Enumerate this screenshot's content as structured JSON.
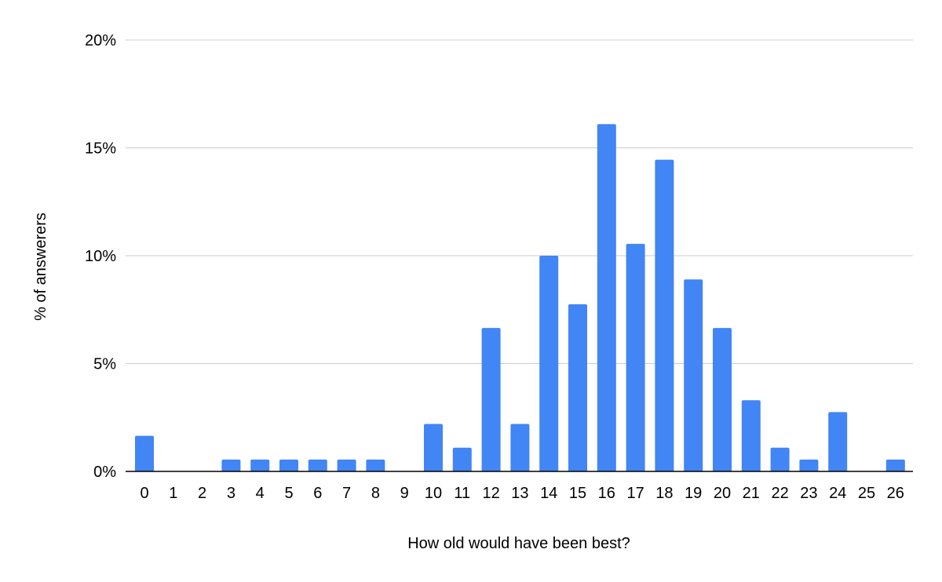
{
  "chart_data": {
    "type": "bar",
    "xlabel": "How old would have been best?",
    "ylabel": "% of answerers",
    "categories": [
      "0",
      "1",
      "2",
      "3",
      "4",
      "5",
      "6",
      "7",
      "8",
      "9",
      "10",
      "11",
      "12",
      "13",
      "14",
      "15",
      "16",
      "17",
      "18",
      "19",
      "20",
      "21",
      "22",
      "23",
      "24",
      "25",
      "26"
    ],
    "values": [
      1.65,
      0,
      0,
      0.55,
      0.55,
      0.55,
      0.55,
      0.55,
      0.55,
      0,
      2.2,
      1.1,
      6.65,
      2.2,
      10.0,
      7.75,
      16.1,
      10.55,
      14.45,
      8.9,
      6.65,
      3.3,
      1.1,
      0.55,
      2.75,
      0,
      0.55
    ],
    "y_ticks": [
      "0%",
      "5%",
      "10%",
      "15%",
      "20%"
    ],
    "ylim": [
      0,
      20
    ],
    "grid": true,
    "legend": "none",
    "bar_color": "#4285f4",
    "grid_color": "#cccccc",
    "axis_color": "#000000"
  }
}
